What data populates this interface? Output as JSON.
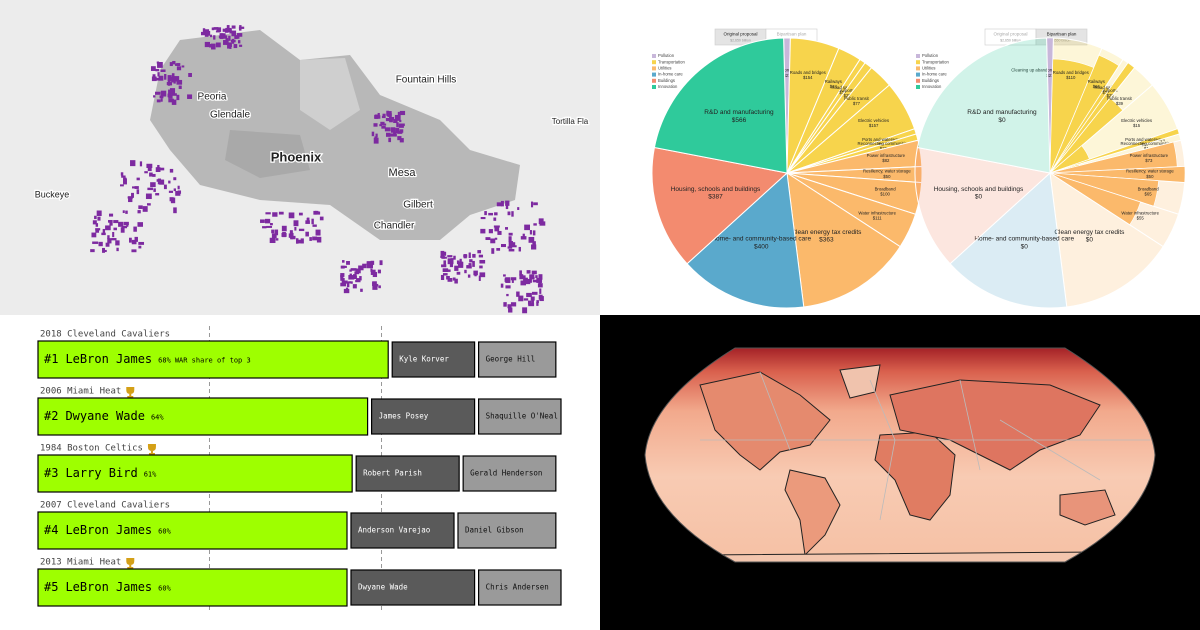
{
  "phoenix_map": {
    "labels": [
      "Peoria",
      "Glendale",
      "Phoenix",
      "Fountain Hills",
      "Tortilla Fla",
      "Mesa",
      "Gilbert",
      "Chandler",
      "Buckeye"
    ]
  },
  "budget": {
    "toggle": [
      {
        "title": "Original proposal",
        "total": "$2,650 billion"
      },
      {
        "title": "Bipartisan plan",
        "total": "$550 billion"
      }
    ],
    "legend": [
      {
        "name": "Pollution",
        "color": "#c8b7da"
      },
      {
        "name": "Transportation",
        "color": "#f7d44c"
      },
      {
        "name": "Utilities",
        "color": "#fbb96b"
      },
      {
        "name": "In-home care",
        "color": "#5aa9cc"
      },
      {
        "name": "Buildings",
        "color": "#f38b6f"
      },
      {
        "name": "Innovation",
        "color": "#2fca9b"
      }
    ],
    "cells": [
      {
        "label": "Cleaning up abandoned wells and mines",
        "group": 0,
        "values": [
          21,
          21
        ],
        "value_labels": [
          "$21",
          "$21"
        ]
      },
      {
        "label": "Roads and bridges",
        "group": 1,
        "values": [
          154,
          110
        ],
        "value_labels": [
          "$154",
          "$110"
        ]
      },
      {
        "label": "Railways",
        "group": 1,
        "values": [
          74,
          66
        ],
        "value_labels": [
          "$74",
          "$66"
        ]
      },
      {
        "label": "Road safety",
        "group": 1,
        "values": [
          19,
          11
        ],
        "value_labels": [
          "$19",
          "$11"
        ]
      },
      {
        "label": "Airports",
        "group": 1,
        "values": [
          25,
          25
        ],
        "value_labels": [
          "$25",
          "$25"
        ]
      },
      {
        "label": "Public transit",
        "group": 1,
        "values": [
          77,
          39
        ],
        "value_labels": [
          "$77",
          "$39"
        ]
      },
      {
        "label": "Electric vehicles",
        "group": 1,
        "values": [
          157,
          15
        ],
        "value_labels": [
          "$157",
          "$15"
        ]
      },
      {
        "label": "Ports and waterways",
        "group": 1,
        "values": [
          17,
          17
        ],
        "value_labels": [
          "$17",
          "$17"
        ]
      },
      {
        "label": "Reconnecting communities",
        "group": 1,
        "values": [
          20,
          1
        ],
        "value_labels": [
          "$20",
          "$1"
        ]
      },
      {
        "label": "Power infrastructure",
        "group": 2,
        "values": [
          82,
          73
        ],
        "value_labels": [
          "$82",
          "$73"
        ]
      },
      {
        "label": "Resiliency, water storage",
        "group": 2,
        "values": [
          50,
          50
        ],
        "value_labels": [
          "$50",
          "$50"
        ]
      },
      {
        "label": "Broadband",
        "group": 2,
        "values": [
          100,
          65
        ],
        "value_labels": [
          "$100",
          "$65"
        ]
      },
      {
        "label": "Water infrastructure",
        "group": 2,
        "values": [
          111,
          55
        ],
        "value_labels": [
          "$111",
          "$55"
        ]
      },
      {
        "label": "Clean energy tax credits",
        "group": 2,
        "values": [
          363,
          0
        ],
        "value_labels": [
          "$363",
          "$0"
        ]
      },
      {
        "label": "Home- and community-based care",
        "group": 3,
        "values": [
          400,
          0
        ],
        "value_labels": [
          "$400",
          "$0"
        ]
      },
      {
        "label": "Housing, schools and buildings",
        "group": 4,
        "values": [
          387,
          0
        ],
        "value_labels": [
          "$387",
          "$0"
        ]
      },
      {
        "label": "R&D and manufacturing",
        "group": 5,
        "values": [
          566,
          0
        ],
        "value_labels": [
          "$566",
          "$0"
        ]
      }
    ]
  },
  "war_share": {
    "note": "WAR share of top 3",
    "reference_lines": [
      33.3,
      66.7
    ],
    "rows": [
      {
        "team": "2018 Cleveland Cavaliers",
        "champion": false,
        "rank": "#1",
        "player": "LeBron James",
        "share": 68,
        "share_label": "68%",
        "teammates": [
          {
            "name": "Kyle Korver",
            "share": 16
          },
          {
            "name": "George Hill",
            "share": 15
          }
        ]
      },
      {
        "team": "2006 Miami Heat",
        "champion": true,
        "rank": "#2",
        "player": "Dwyane Wade",
        "share": 64,
        "share_label": "64%",
        "teammates": [
          {
            "name": "James Posey",
            "share": 20
          },
          {
            "name": "Shaquille O'Neal",
            "share": 16
          }
        ]
      },
      {
        "team": "1984 Boston Celtics",
        "champion": true,
        "rank": "#3",
        "player": "Larry Bird",
        "share": 61,
        "share_label": "61%",
        "teammates": [
          {
            "name": "Robert Parish",
            "share": 20
          },
          {
            "name": "Gerald Henderson",
            "share": 18
          }
        ]
      },
      {
        "team": "2007 Cleveland Cavaliers",
        "champion": false,
        "rank": "#4",
        "player": "LeBron James",
        "share": 60,
        "share_label": "60%",
        "teammates": [
          {
            "name": "Anderson Varejao",
            "share": 20
          },
          {
            "name": "Daniel Gibson",
            "share": 19
          }
        ]
      },
      {
        "team": "2013 Miami Heat",
        "champion": true,
        "rank": "#5",
        "player": "LeBron James",
        "share": 60,
        "share_label": "60%",
        "teammates": [
          {
            "name": "Dwyane Wade",
            "share": 24
          },
          {
            "name": "Chris Andersen",
            "share": 16
          }
        ]
      }
    ]
  }
}
